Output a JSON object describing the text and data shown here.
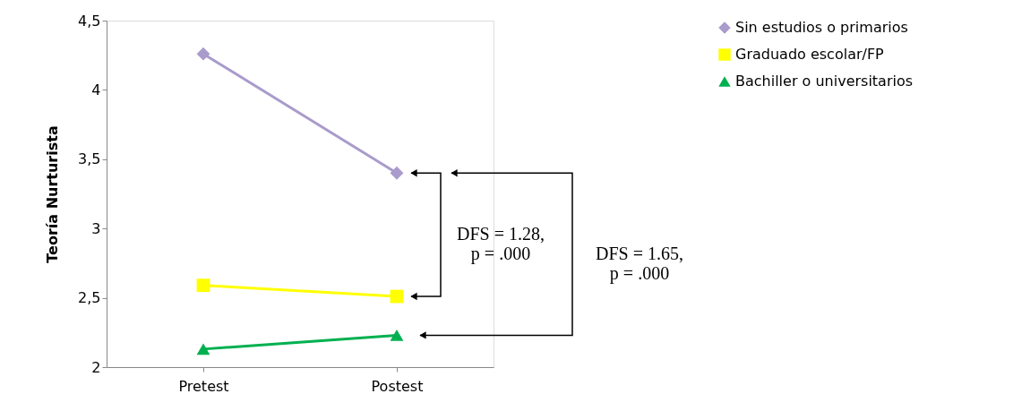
{
  "chart_data": {
    "type": "line",
    "ylabel": "Teoría Nurturista",
    "categories": [
      "Pretest",
      "Postest"
    ],
    "series": [
      {
        "name": "Sin estudios o primarios",
        "color": "#a99bcb",
        "marker": "diamond",
        "values": [
          4.26,
          3.4
        ]
      },
      {
        "name": "Graduado escolar/FP",
        "color": "#ffff00",
        "marker": "square",
        "values": [
          2.59,
          2.51
        ]
      },
      {
        "name": "Bachiller o universitarios",
        "color": "#00b050",
        "marker": "triangle",
        "values": [
          2.13,
          2.23
        ]
      }
    ],
    "ylim": [
      2,
      4.5
    ],
    "yticks": [
      2,
      {
        "value": 2.5,
        "label": "2,5"
      },
      3,
      {
        "value": 3.5,
        "label": "3,5"
      },
      4,
      {
        "value": 4.5,
        "label": "4,5"
      }
    ],
    "grid": false,
    "legend": "right",
    "line_style": "solid",
    "annotations": [
      "DFS = 1.28,\np = .000",
      "DFS = 1.65,\np = .000"
    ]
  }
}
